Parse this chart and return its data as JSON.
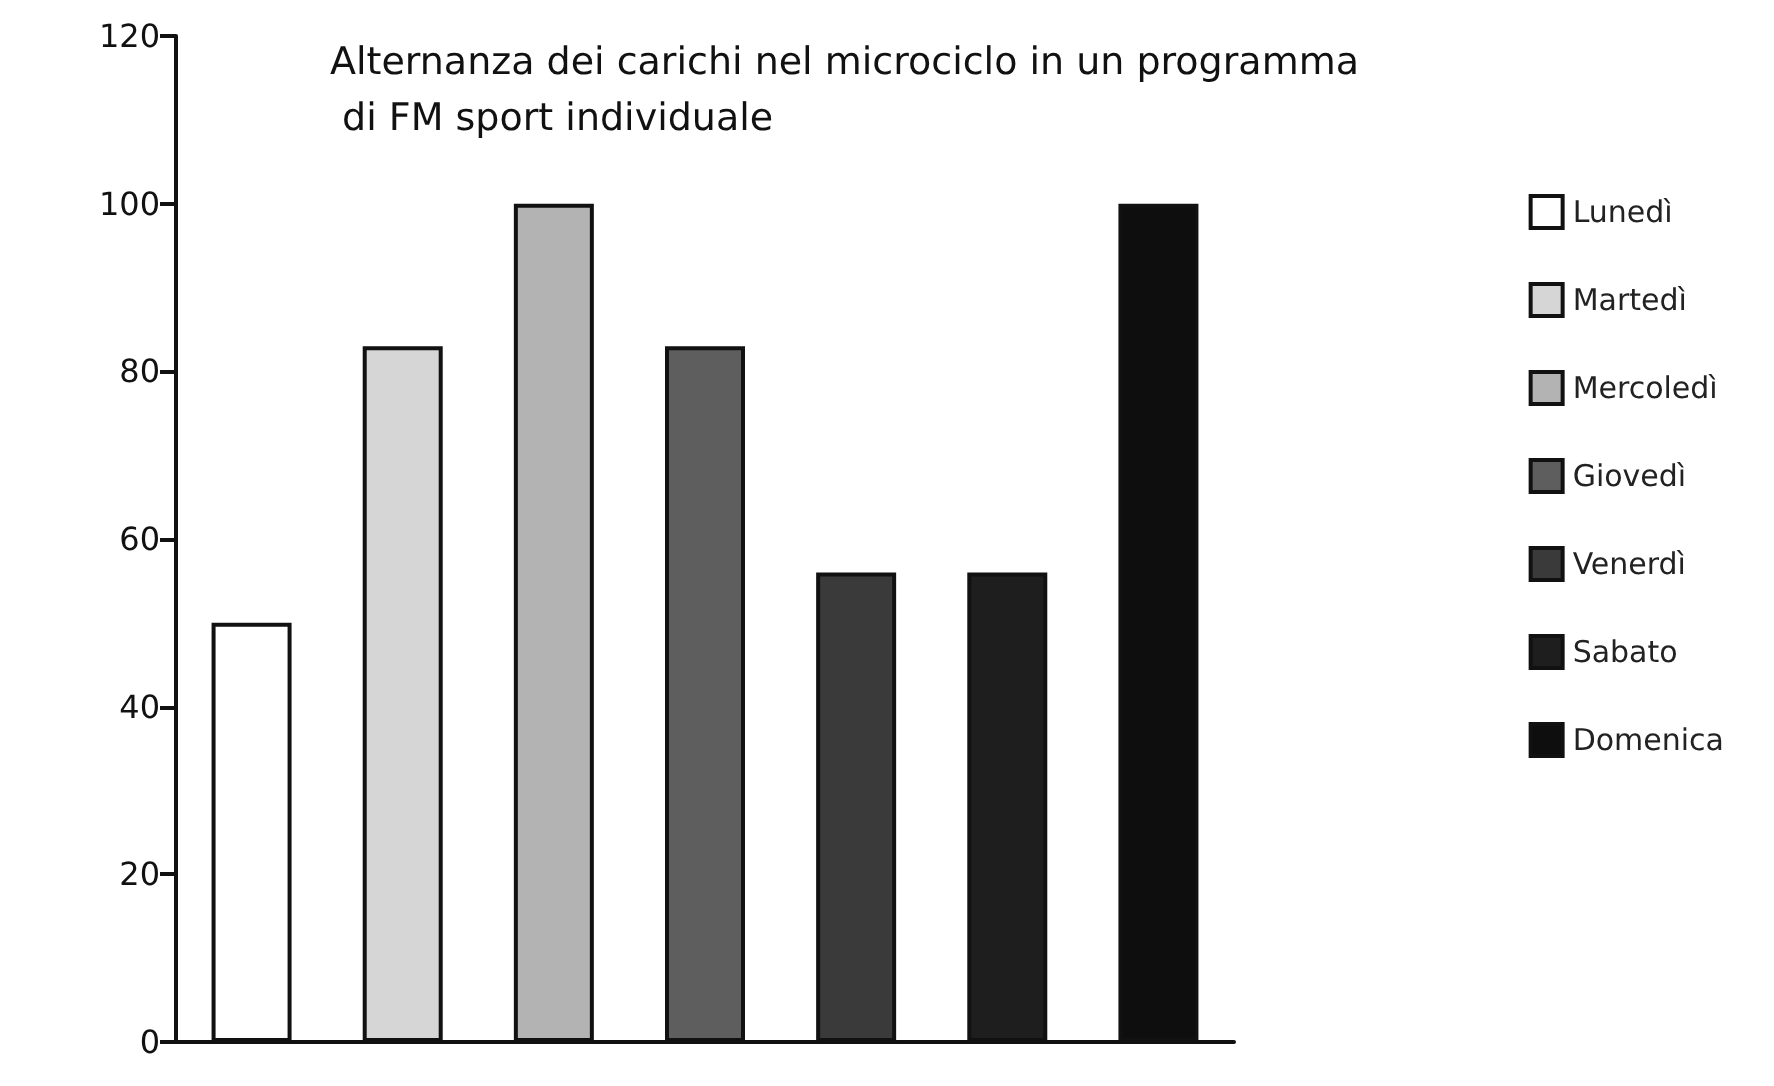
{
  "chart_data": {
    "type": "bar",
    "title": "Alternanza dei carichi nel microciclo in un programma di FM sport individuale",
    "categories": [
      null,
      null,
      null,
      null,
      null,
      null,
      null
    ],
    "stacked": true,
    "series": [
      {
        "name": "Lunedì",
        "color": "#ffffff",
        "values": [
          50,
          null,
          null,
          null,
          null,
          null,
          null
        ]
      },
      {
        "name": "Martedì",
        "color": "#d6d6d6",
        "values": [
          null,
          83,
          null,
          null,
          null,
          null,
          null
        ]
      },
      {
        "name": "Mercoledì",
        "color": "#b3b3b3",
        "values": [
          null,
          null,
          100,
          null,
          null,
          null,
          null
        ]
      },
      {
        "name": "Giovedì",
        "color": "#5e5e5e",
        "values": [
          null,
          null,
          null,
          83,
          null,
          null,
          null
        ]
      },
      {
        "name": "Venerdì",
        "color": "#3a3a3a",
        "values": [
          null,
          null,
          null,
          null,
          56,
          null,
          null
        ]
      },
      {
        "name": "Sabato",
        "color": "#1e1e1e",
        "values": [
          null,
          null,
          null,
          null,
          null,
          56,
          null
        ]
      },
      {
        "name": "Domenica",
        "color": "#0e0e0e",
        "values": [
          null,
          null,
          null,
          null,
          null,
          null,
          100
        ]
      }
    ],
    "ylim": [
      0,
      120
    ],
    "yticks": [
      0,
      20,
      40,
      60,
      80,
      100,
      120
    ],
    "grid": false,
    "legend": "right"
  }
}
